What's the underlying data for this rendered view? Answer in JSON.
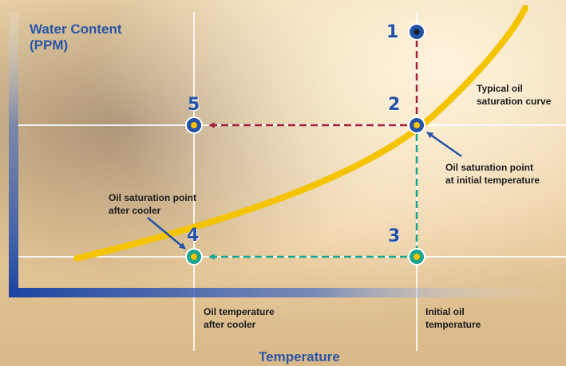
{
  "title_line1": "Water Content",
  "title_line2": "(PPM)",
  "x_axis_title": "Temperature",
  "points": {
    "p1": "1",
    "p2": "2",
    "p3": "3",
    "p4": "4",
    "p5": "5"
  },
  "labels": {
    "curve_line1": "Typical oil",
    "curve_line2": "saturation curve",
    "sat_initial_line1": "Oil saturation point",
    "sat_initial_line2": "at initial temperature",
    "sat_cooler_line1": "Oil saturation point",
    "sat_cooler_line2": "after cooler",
    "temp_cooler_line1": "Oil temperature",
    "temp_cooler_line2": "after cooler",
    "temp_initial_line1": "Initial oil",
    "temp_initial_line2": "temperature"
  },
  "colors": {
    "curve": "#f5c400",
    "cooling_arrow": "#a3223c",
    "teal": "#1aa58f",
    "blue": "#2452a6",
    "axis_frame": "#1b43a0"
  }
}
